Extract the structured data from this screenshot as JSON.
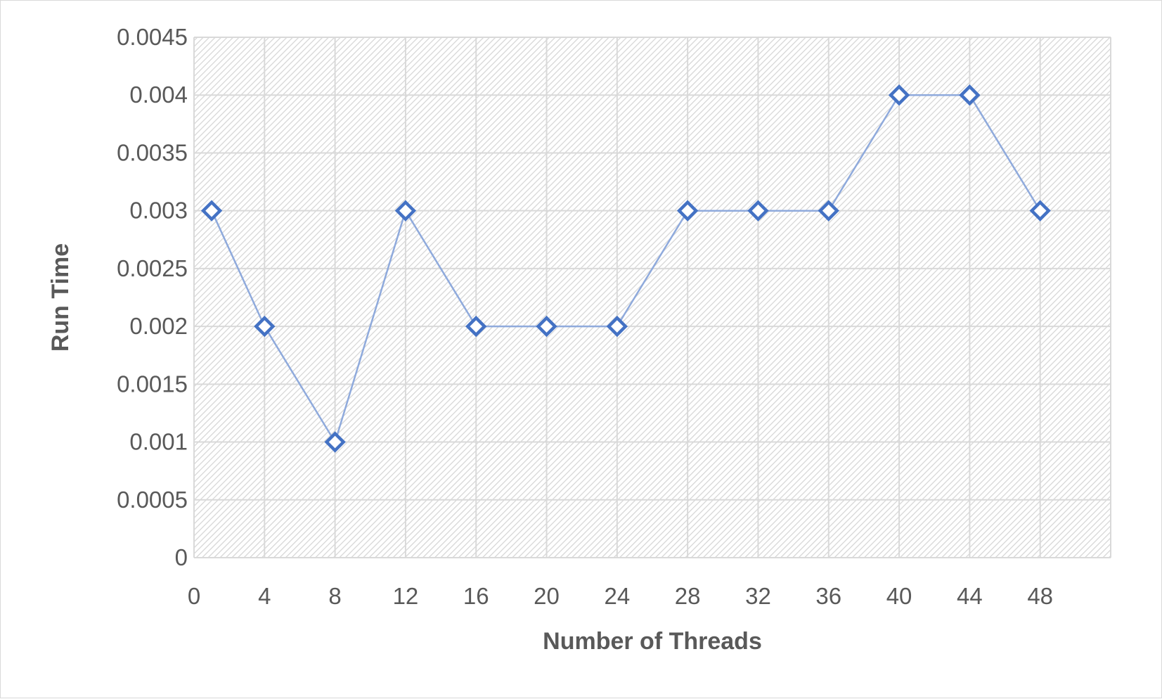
{
  "chart_data": {
    "type": "line",
    "title": "",
    "xlabel": "Number of Threads",
    "ylabel": "Run Time",
    "x_ticks": [
      "0",
      "4",
      "8",
      "12",
      "16",
      "20",
      "24",
      "28",
      "32",
      "36",
      "40",
      "44",
      "48"
    ],
    "y_ticks": [
      "0",
      "0.0005",
      "0.001",
      "0.0015",
      "0.002",
      "0.0025",
      "0.003",
      "0.0035",
      "0.004",
      "0.0045"
    ],
    "xlim": [
      0,
      52
    ],
    "ylim": [
      0,
      0.0045
    ],
    "grid": true,
    "legend": "none",
    "series": [
      {
        "x": [
          1,
          4,
          8,
          12,
          16,
          20,
          24,
          28,
          32,
          36,
          40,
          44,
          48
        ],
        "values": [
          0.003,
          0.002,
          0.001,
          0.003,
          0.002,
          0.002,
          0.002,
          0.003,
          0.003,
          0.003,
          0.004,
          0.004,
          0.003
        ],
        "marker": "diamond-hollow"
      }
    ],
    "colors": {
      "marker": "#4472c4",
      "line": "#8faadc",
      "grid": "#d9d9d9",
      "text": "#595959",
      "plot_hatch": "#d9d9d9"
    }
  }
}
